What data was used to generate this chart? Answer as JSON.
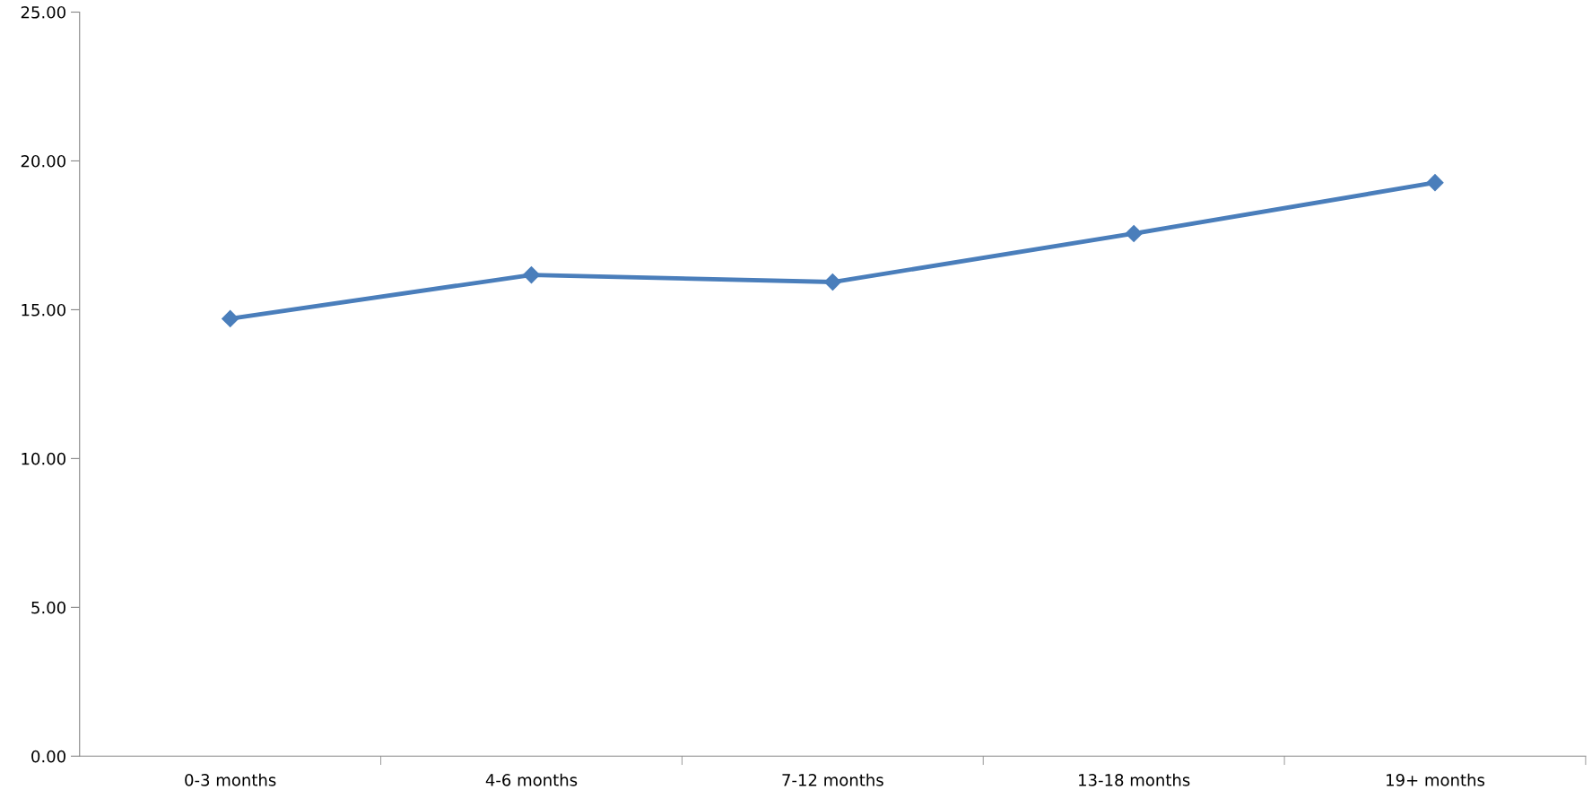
{
  "chart_data": {
    "type": "line",
    "categories": [
      "0-3 months",
      "4-6 months",
      "7-12 months",
      "13-18 months",
      "19+ months"
    ],
    "series": [
      {
        "color": "#4a7ebb",
        "values": [
          14.7,
          16.17,
          15.93,
          17.56,
          19.27
        ]
      }
    ],
    "ylim": [
      0,
      25
    ],
    "yticks": [
      {
        "value": 0,
        "label": "0.00"
      },
      {
        "value": 5,
        "label": "5.00"
      },
      {
        "value": 10,
        "label": "10.00"
      },
      {
        "value": 15,
        "label": "15.00"
      },
      {
        "value": 20,
        "label": "20.00"
      },
      {
        "value": 25,
        "label": "25.00"
      }
    ],
    "grid": false,
    "legend": false,
    "marker": "diamond",
    "line_style": "solid"
  }
}
